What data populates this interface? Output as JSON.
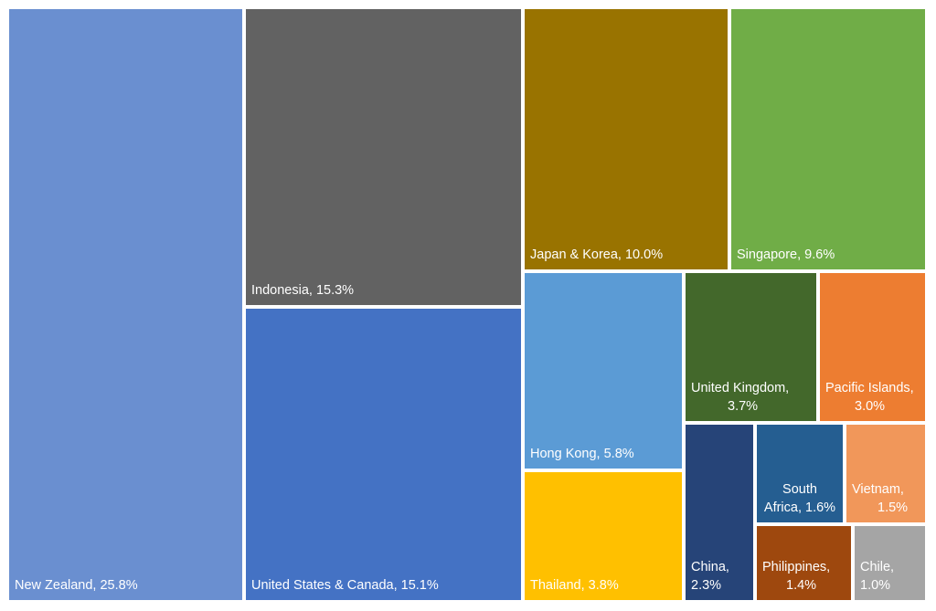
{
  "chart_data": {
    "type": "treemap",
    "title": "",
    "items": [
      {
        "key": "new-zealand",
        "label": "New Zealand, 25.8%",
        "label_lines": [
          "New Zealand, 25.8%"
        ],
        "name": "New Zealand",
        "value": 25.8,
        "color": "#6A8FD0"
      },
      {
        "key": "indonesia",
        "label": "Indonesia, 15.3%",
        "label_lines": [
          "Indonesia, 15.3%"
        ],
        "name": "Indonesia",
        "value": 15.3,
        "color": "#626262"
      },
      {
        "key": "united-states-canada",
        "label": "United States & Canada, 15.1%",
        "label_lines": [
          "United States & Canada, 15.1%"
        ],
        "name": "United States & Canada",
        "value": 15.1,
        "color": "#4472C4"
      },
      {
        "key": "japan-korea",
        "label": "Japan & Korea, 10.0%",
        "label_lines": [
          "Japan & Korea, 10.0%"
        ],
        "name": "Japan & Korea",
        "value": 10.0,
        "color": "#997300"
      },
      {
        "key": "singapore",
        "label": "Singapore, 9.6%",
        "label_lines": [
          "Singapore, 9.6%"
        ],
        "name": "Singapore",
        "value": 9.6,
        "color": "#70AD47"
      },
      {
        "key": "hong-kong",
        "label": "Hong Kong, 5.8%",
        "label_lines": [
          "Hong Kong, 5.8%"
        ],
        "name": "Hong Kong",
        "value": 5.8,
        "color": "#5B9BD5"
      },
      {
        "key": "thailand",
        "label": "Thailand, 3.8%",
        "label_lines": [
          "Thailand, 3.8%"
        ],
        "name": "Thailand",
        "value": 3.8,
        "color": "#FFC000"
      },
      {
        "key": "united-kingdom",
        "label": "United Kingdom, 3.7%",
        "label_lines": [
          "United Kingdom,",
          "3.7%"
        ],
        "name": "United Kingdom",
        "value": 3.7,
        "color": "#43682B"
      },
      {
        "key": "pacific-islands",
        "label": "Pacific Islands, 3.0%",
        "label_lines": [
          "Pacific Islands,",
          "3.0%"
        ],
        "name": "Pacific Islands",
        "value": 3.0,
        "color": "#ED7D31"
      },
      {
        "key": "china",
        "label": "China, 2.3%",
        "label_lines": [
          "China,",
          "2.3%"
        ],
        "name": "China",
        "value": 2.3,
        "color": "#264478"
      },
      {
        "key": "south-africa",
        "label": "South Africa, 1.6%",
        "label_lines": [
          "South",
          "Africa, 1.6%"
        ],
        "name": "South Africa",
        "value": 1.6,
        "color": "#255E91"
      },
      {
        "key": "vietnam",
        "label": "Vietnam, 1.5%",
        "label_lines": [
          "Vietnam,",
          "1.5%"
        ],
        "name": "Vietnam",
        "value": 1.5,
        "color": "#F1975A"
      },
      {
        "key": "philippines",
        "label": "Philippines, 1.4%",
        "label_lines": [
          "Philippines,",
          "1.4%"
        ],
        "name": "Philippines",
        "value": 1.4,
        "color": "#9E480E"
      },
      {
        "key": "chile",
        "label": "Chile, 1.0%",
        "label_lines": [
          "Chile,",
          "1.0%"
        ],
        "name": "Chile",
        "value": 1.0,
        "color": "#A5A5A5"
      }
    ]
  }
}
